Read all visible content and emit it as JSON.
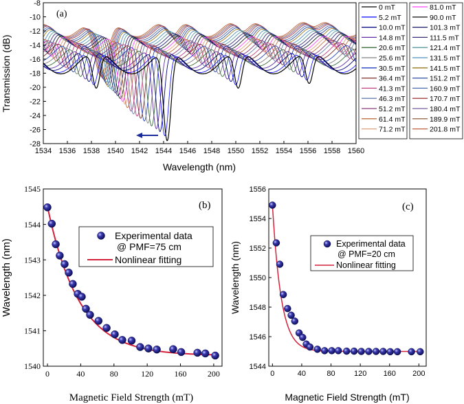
{
  "chart_data": [
    {
      "panel_label": "(a)",
      "type": "line",
      "xlabel": "Wavelength (nm)",
      "ylabel": "Transmission (dB)",
      "xlim": [
        1534,
        1560
      ],
      "ylim": [
        -28,
        -8
      ],
      "xticks": [
        1534,
        1536,
        1538,
        1540,
        1542,
        1544,
        1546,
        1548,
        1550,
        1552,
        1554,
        1556,
        1558,
        1560
      ],
      "yticks": [
        -28,
        -26,
        -24,
        -22,
        -20,
        -18,
        -16,
        -14,
        -12,
        -10,
        -8
      ],
      "arrow_direction": "left",
      "legend_col1": [
        "0 mT",
        "5.2 mT",
        "10.0 mT",
        "14.8 mT",
        "20.6 mT",
        "25.6 mT",
        "30.5 mT",
        "36.4 mT",
        "41.3 mT",
        "46.3 mT",
        "51.2 mT",
        "61.4 mT",
        "71.2 mT"
      ],
      "legend_col2": [
        "81.0 mT",
        "90.0 mT",
        "101.3 mT",
        "111.5 mT",
        "121.4 mT",
        "131.5 mT",
        "141.5 mT",
        "151.2 mT",
        "160.9 mT",
        "170.7 mT",
        "180.4 mT",
        "189.9 mT",
        "201.8 mT"
      ],
      "series_colors": [
        "#000000",
        "#1a1aff",
        "#000080",
        "#5e2ca5",
        "#3c6e3c",
        "#7f7f7f",
        "#1f3fbf",
        "#7a2a2a",
        "#c04080",
        "#6a7fb0",
        "#8a3a7a",
        "#c07040",
        "#e0a080",
        "#ff44ff",
        "#202020",
        "#1a1a6e",
        "#3a2a7a",
        "#5a9aa0",
        "#4a90c0",
        "#9a7a20",
        "#2a4aa0",
        "#4a6ab0",
        "#a04040",
        "#7a5a9a",
        "#9a6a4a",
        "#c06040"
      ],
      "dip_depth_db": [
        -27.6,
        -26.9,
        -26.3,
        -25.9,
        -25.5,
        -25.1,
        -24.8,
        -24.4,
        -24.1,
        -23.8,
        -23.4,
        -22.9,
        -22.4,
        -22.0,
        -21.6,
        -21.2,
        -20.8,
        -20.5,
        -20.2,
        -19.9,
        -19.6,
        -19.3,
        -19.0,
        -18.8,
        -18.6,
        -18.4
      ],
      "baseline_db": [
        -16.5,
        -16.3,
        -16.0,
        -15.7,
        -15.4,
        -15.1,
        -14.8,
        -14.5,
        -14.3,
        -14.1,
        -13.9,
        -13.7,
        -13.5,
        -13.3,
        -13.1,
        -12.9,
        -12.7,
        -12.5,
        -12.3,
        -12.1,
        -11.9,
        -11.7,
        -11.5,
        -11.4,
        -11.3,
        -11.2
      ],
      "dip_center_nm": [
        1544.3,
        1544.1,
        1543.7,
        1543.4,
        1543.0,
        1542.7,
        1542.4,
        1542.1,
        1541.8,
        1541.5,
        1541.3,
        1541.0,
        1540.8,
        1540.6,
        1540.4,
        1540.2,
        1540.0,
        1539.8,
        1539.6,
        1539.4,
        1539.3,
        1539.2,
        1539.1,
        1539.0,
        1538.9,
        1538.8
      ],
      "dip_period_nm": 5.9,
      "dip_width_nm": 0.45
    },
    {
      "panel_label": "(b)",
      "type": "scatter",
      "xlabel": "Magnetic Field Strength (mT)",
      "ylabel": "Wavelength (nm)",
      "xlim": [
        -5,
        210
      ],
      "ylim": [
        1540,
        1545
      ],
      "xticks": [
        0,
        40,
        80,
        120,
        160,
        200
      ],
      "yticks": [
        1540,
        1541,
        1542,
        1543,
        1544,
        1545
      ],
      "legend": [
        "Experimental data",
        "@ PMF=75 cm",
        "Nonlinear fitting"
      ],
      "x": [
        0,
        5.2,
        10,
        14.8,
        20.6,
        25.6,
        30.5,
        36.4,
        41.3,
        46.3,
        51.2,
        61.4,
        71.2,
        81,
        90,
        101.3,
        111.5,
        121.4,
        131.5,
        151.2,
        160.9,
        180.4,
        189.9,
        201.8
      ],
      "y": [
        1544.48,
        1544.02,
        1543.44,
        1543.12,
        1542.88,
        1542.64,
        1542.32,
        1542.04,
        1541.96,
        1541.62,
        1541.45,
        1541.28,
        1541.08,
        1540.9,
        1540.74,
        1540.72,
        1540.54,
        1540.5,
        1540.47,
        1540.48,
        1540.4,
        1540.38,
        1540.36,
        1540.3
      ],
      "fit": {
        "y0": 1540.3,
        "A": 4.2,
        "t": 38
      }
    },
    {
      "panel_label": "(c)",
      "type": "scatter",
      "xlabel": "Magnetic Field Strength (mT)",
      "ylabel": "Wavelength (nm)",
      "xlim": [
        -5,
        210
      ],
      "ylim": [
        1544,
        1556
      ],
      "xticks": [
        0,
        40,
        80,
        120,
        160,
        200
      ],
      "yticks": [
        1544,
        1546,
        1548,
        1550,
        1552,
        1554,
        1556
      ],
      "legend": [
        "Experimental data",
        "@ PMF=20 cm",
        "Nonlinear fitting"
      ],
      "x": [
        0,
        5.2,
        10,
        14.8,
        20.6,
        25.6,
        30.5,
        36.4,
        41.3,
        46.3,
        51.2,
        61.4,
        71.2,
        81,
        90,
        101.3,
        111.5,
        121.4,
        131.5,
        141.5,
        151.2,
        160.9,
        170.7,
        189.9,
        201.8
      ],
      "y": [
        1554.9,
        1552.35,
        1550.9,
        1548.85,
        1547.9,
        1547.45,
        1547.05,
        1546.25,
        1545.95,
        1545.5,
        1545.3,
        1545.15,
        1545.05,
        1545.05,
        1545.05,
        1545.02,
        1545.02,
        1545.0,
        1545.0,
        1545.0,
        1545.0,
        1544.98,
        1544.98,
        1544.98,
        1544.98
      ],
      "fit": {
        "y0": 1545.0,
        "A": 9.9,
        "t": 12
      }
    }
  ]
}
